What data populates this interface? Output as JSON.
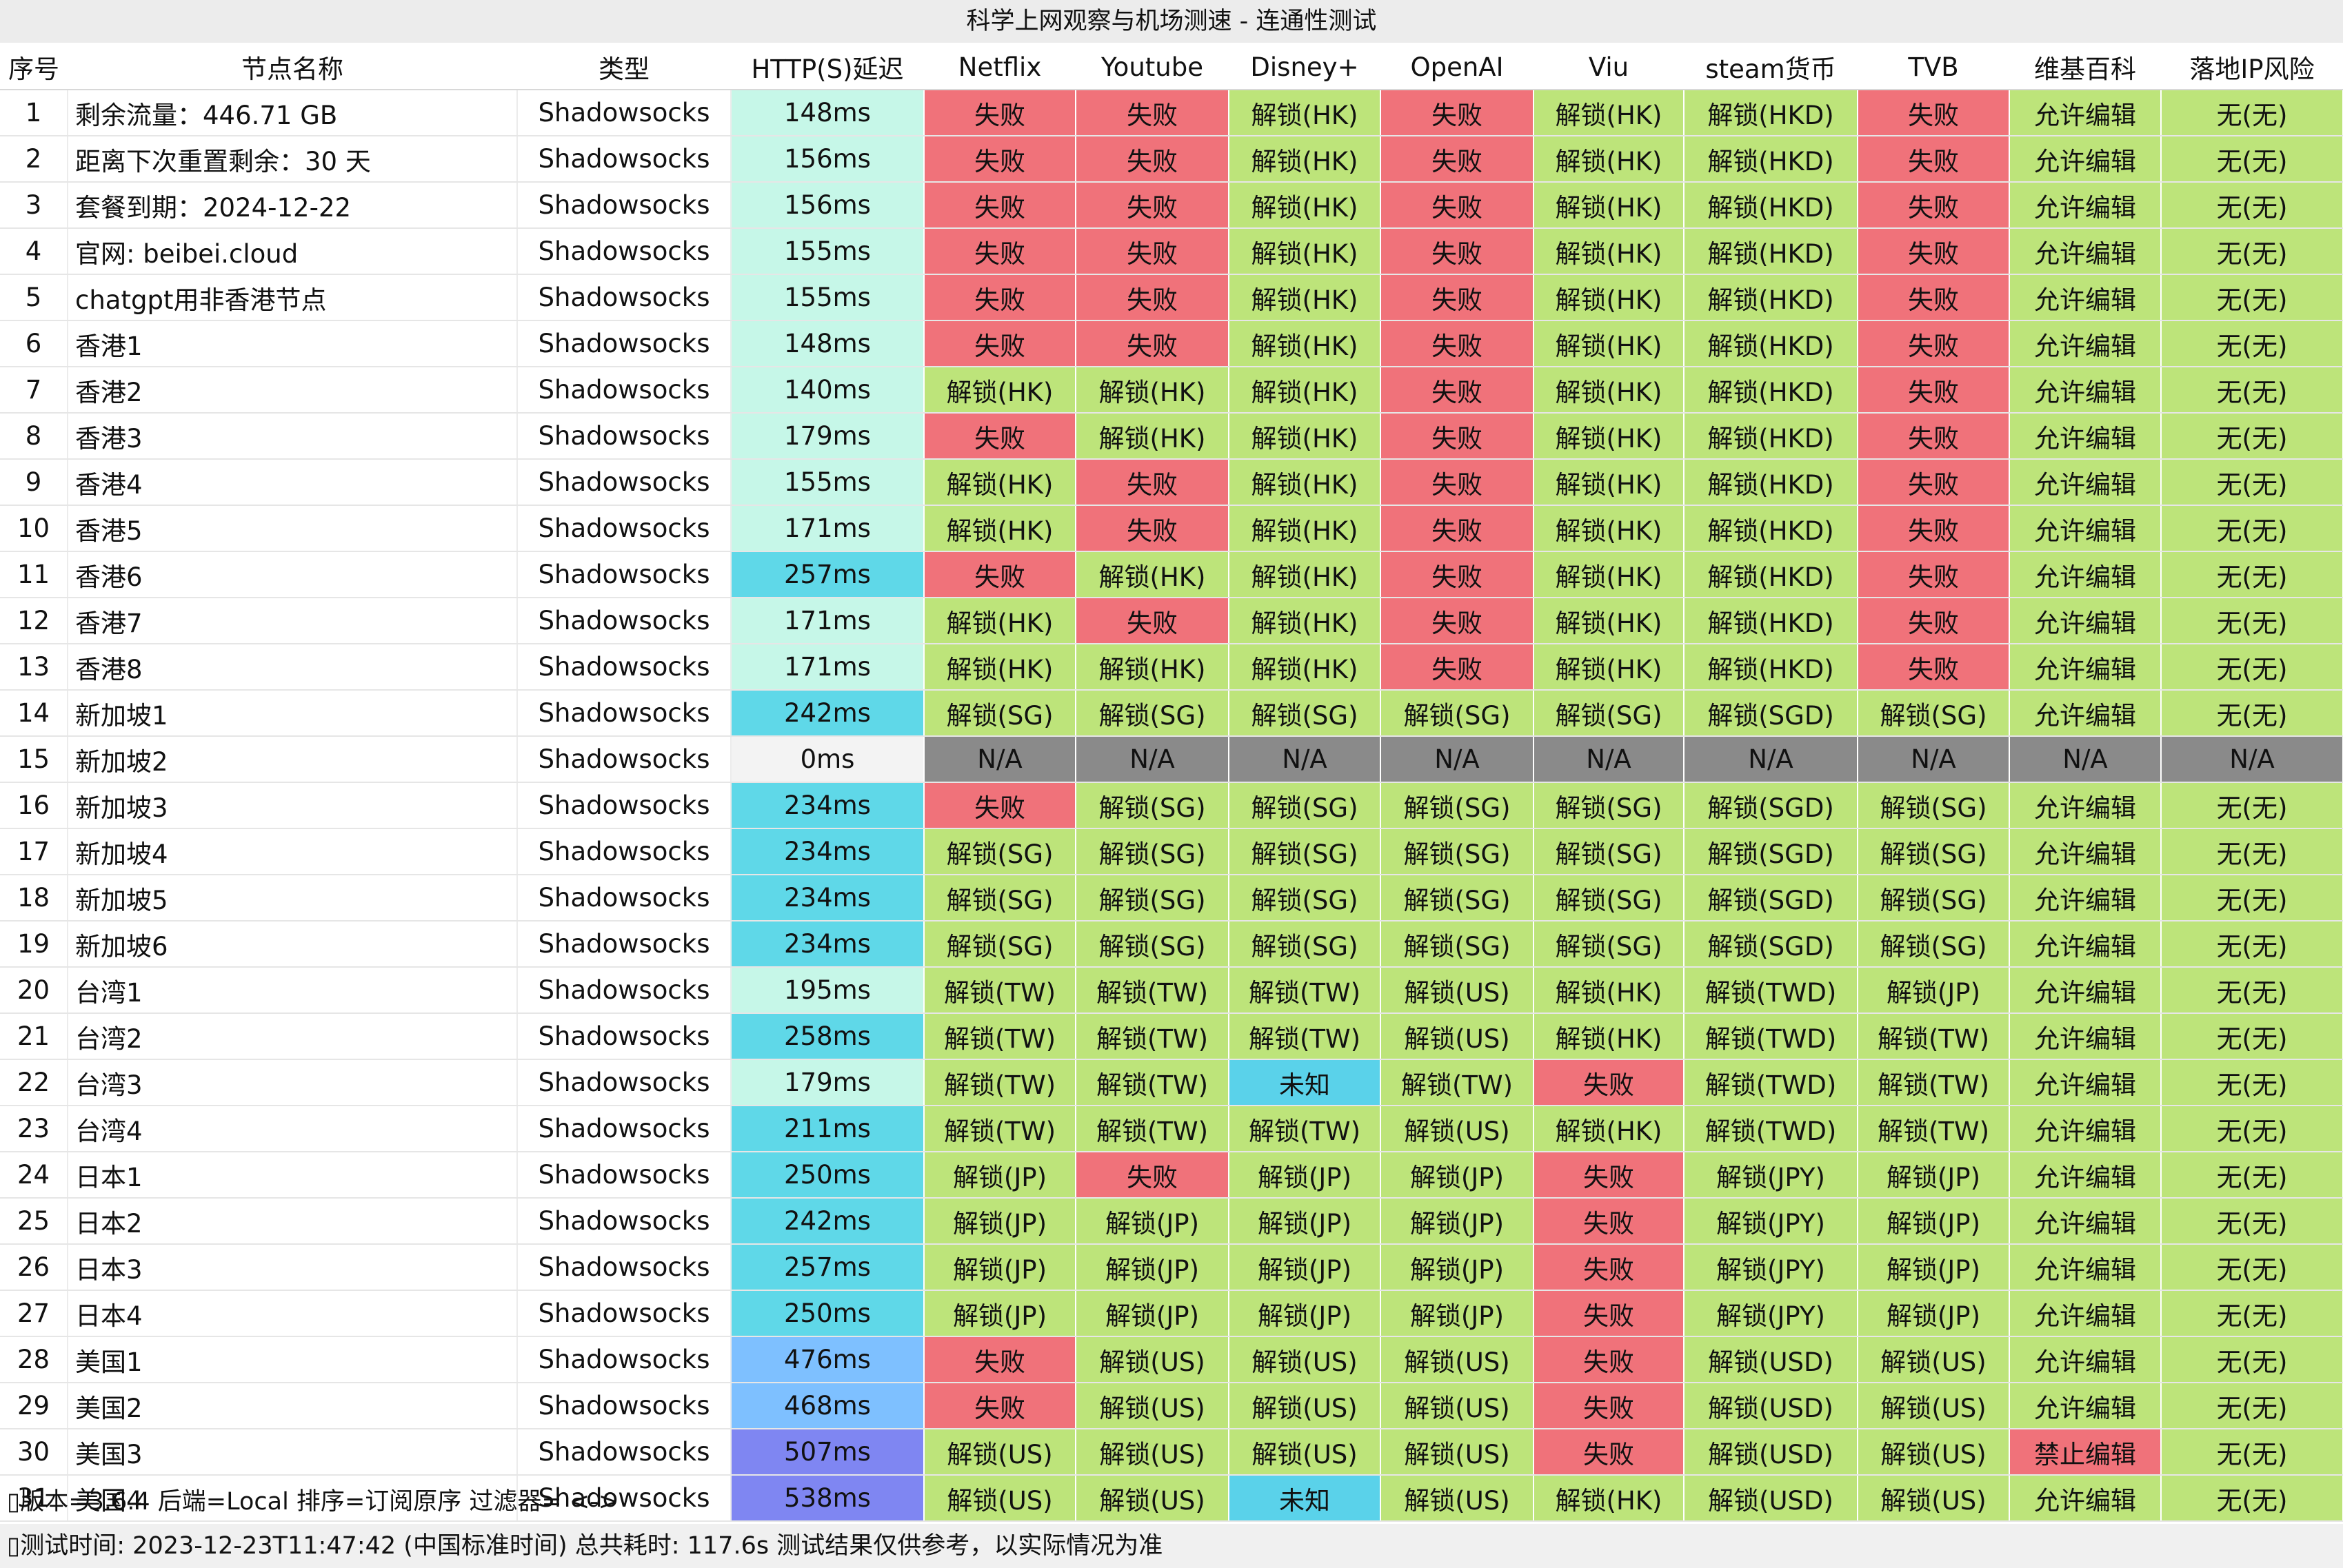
{
  "title": "科学上网观察与机场测速 - 连通性测试",
  "columns": [
    "序号",
    "节点名称",
    "类型",
    "HTTP(S)延迟",
    "Netflix",
    "Youtube",
    "Disney+",
    "OpenAI",
    "Viu",
    "steam货币",
    "TVB",
    "维基百科",
    "落地IP风险"
  ],
  "colors": {
    "fail": "#f0727a",
    "unlock": "#bde47a",
    "na": "#8a8a8a",
    "unknown": "#5ad2ea",
    "latency_low": "#c6f7e8",
    "latency_mid": "#5fd8e8",
    "latency_high": "#7ec0ff",
    "latency_max": "#7f86f2",
    "latency_zero": "#f3f3f3"
  },
  "rows": [
    {
      "idx": "1",
      "name": "剩余流量：446.71 GB",
      "type": "Shadowsocks",
      "latency": "148ms",
      "netflix": "失败",
      "youtube": "失败",
      "disney": "解锁(HK)",
      "openai": "失败",
      "viu": "解锁(HK)",
      "steam": "解锁(HKD)",
      "tvb": "失败",
      "wiki": "允许编辑",
      "risk": "无(无)"
    },
    {
      "idx": "2",
      "name": "距离下次重置剩余：30 天",
      "type": "Shadowsocks",
      "latency": "156ms",
      "netflix": "失败",
      "youtube": "失败",
      "disney": "解锁(HK)",
      "openai": "失败",
      "viu": "解锁(HK)",
      "steam": "解锁(HKD)",
      "tvb": "失败",
      "wiki": "允许编辑",
      "risk": "无(无)"
    },
    {
      "idx": "3",
      "name": "套餐到期：2024-12-22",
      "type": "Shadowsocks",
      "latency": "156ms",
      "netflix": "失败",
      "youtube": "失败",
      "disney": "解锁(HK)",
      "openai": "失败",
      "viu": "解锁(HK)",
      "steam": "解锁(HKD)",
      "tvb": "失败",
      "wiki": "允许编辑",
      "risk": "无(无)"
    },
    {
      "idx": "4",
      "name": "官网: beibei.cloud",
      "type": "Shadowsocks",
      "latency": "155ms",
      "netflix": "失败",
      "youtube": "失败",
      "disney": "解锁(HK)",
      "openai": "失败",
      "viu": "解锁(HK)",
      "steam": "解锁(HKD)",
      "tvb": "失败",
      "wiki": "允许编辑",
      "risk": "无(无)"
    },
    {
      "idx": "5",
      "name": "chatgpt用非香港节点",
      "type": "Shadowsocks",
      "latency": "155ms",
      "netflix": "失败",
      "youtube": "失败",
      "disney": "解锁(HK)",
      "openai": "失败",
      "viu": "解锁(HK)",
      "steam": "解锁(HKD)",
      "tvb": "失败",
      "wiki": "允许编辑",
      "risk": "无(无)"
    },
    {
      "idx": "6",
      "name": "香港1",
      "type": "Shadowsocks",
      "latency": "148ms",
      "netflix": "失败",
      "youtube": "失败",
      "disney": "解锁(HK)",
      "openai": "失败",
      "viu": "解锁(HK)",
      "steam": "解锁(HKD)",
      "tvb": "失败",
      "wiki": "允许编辑",
      "risk": "无(无)"
    },
    {
      "idx": "7",
      "name": "香港2",
      "type": "Shadowsocks",
      "latency": "140ms",
      "netflix": "解锁(HK)",
      "youtube": "解锁(HK)",
      "disney": "解锁(HK)",
      "openai": "失败",
      "viu": "解锁(HK)",
      "steam": "解锁(HKD)",
      "tvb": "失败",
      "wiki": "允许编辑",
      "risk": "无(无)"
    },
    {
      "idx": "8",
      "name": "香港3",
      "type": "Shadowsocks",
      "latency": "179ms",
      "netflix": "失败",
      "youtube": "解锁(HK)",
      "disney": "解锁(HK)",
      "openai": "失败",
      "viu": "解锁(HK)",
      "steam": "解锁(HKD)",
      "tvb": "失败",
      "wiki": "允许编辑",
      "risk": "无(无)"
    },
    {
      "idx": "9",
      "name": "香港4",
      "type": "Shadowsocks",
      "latency": "155ms",
      "netflix": "解锁(HK)",
      "youtube": "失败",
      "disney": "解锁(HK)",
      "openai": "失败",
      "viu": "解锁(HK)",
      "steam": "解锁(HKD)",
      "tvb": "失败",
      "wiki": "允许编辑",
      "risk": "无(无)"
    },
    {
      "idx": "10",
      "name": "香港5",
      "type": "Shadowsocks",
      "latency": "171ms",
      "netflix": "解锁(HK)",
      "youtube": "失败",
      "disney": "解锁(HK)",
      "openai": "失败",
      "viu": "解锁(HK)",
      "steam": "解锁(HKD)",
      "tvb": "失败",
      "wiki": "允许编辑",
      "risk": "无(无)"
    },
    {
      "idx": "11",
      "name": "香港6",
      "type": "Shadowsocks",
      "latency": "257ms",
      "netflix": "失败",
      "youtube": "解锁(HK)",
      "disney": "解锁(HK)",
      "openai": "失败",
      "viu": "解锁(HK)",
      "steam": "解锁(HKD)",
      "tvb": "失败",
      "wiki": "允许编辑",
      "risk": "无(无)"
    },
    {
      "idx": "12",
      "name": "香港7",
      "type": "Shadowsocks",
      "latency": "171ms",
      "netflix": "解锁(HK)",
      "youtube": "失败",
      "disney": "解锁(HK)",
      "openai": "失败",
      "viu": "解锁(HK)",
      "steam": "解锁(HKD)",
      "tvb": "失败",
      "wiki": "允许编辑",
      "risk": "无(无)"
    },
    {
      "idx": "13",
      "name": "香港8",
      "type": "Shadowsocks",
      "latency": "171ms",
      "netflix": "解锁(HK)",
      "youtube": "解锁(HK)",
      "disney": "解锁(HK)",
      "openai": "失败",
      "viu": "解锁(HK)",
      "steam": "解锁(HKD)",
      "tvb": "失败",
      "wiki": "允许编辑",
      "risk": "无(无)"
    },
    {
      "idx": "14",
      "name": "新加坡1",
      "type": "Shadowsocks",
      "latency": "242ms",
      "netflix": "解锁(SG)",
      "youtube": "解锁(SG)",
      "disney": "解锁(SG)",
      "openai": "解锁(SG)",
      "viu": "解锁(SG)",
      "steam": "解锁(SGD)",
      "tvb": "解锁(SG)",
      "wiki": "允许编辑",
      "risk": "无(无)"
    },
    {
      "idx": "15",
      "name": "新加坡2",
      "type": "Shadowsocks",
      "latency": "0ms",
      "netflix": "N/A",
      "youtube": "N/A",
      "disney": "N/A",
      "openai": "N/A",
      "viu": "N/A",
      "steam": "N/A",
      "tvb": "N/A",
      "wiki": "N/A",
      "risk": "N/A"
    },
    {
      "idx": "16",
      "name": "新加坡3",
      "type": "Shadowsocks",
      "latency": "234ms",
      "netflix": "失败",
      "youtube": "解锁(SG)",
      "disney": "解锁(SG)",
      "openai": "解锁(SG)",
      "viu": "解锁(SG)",
      "steam": "解锁(SGD)",
      "tvb": "解锁(SG)",
      "wiki": "允许编辑",
      "risk": "无(无)"
    },
    {
      "idx": "17",
      "name": "新加坡4",
      "type": "Shadowsocks",
      "latency": "234ms",
      "netflix": "解锁(SG)",
      "youtube": "解锁(SG)",
      "disney": "解锁(SG)",
      "openai": "解锁(SG)",
      "viu": "解锁(SG)",
      "steam": "解锁(SGD)",
      "tvb": "解锁(SG)",
      "wiki": "允许编辑",
      "risk": "无(无)"
    },
    {
      "idx": "18",
      "name": "新加坡5",
      "type": "Shadowsocks",
      "latency": "234ms",
      "netflix": "解锁(SG)",
      "youtube": "解锁(SG)",
      "disney": "解锁(SG)",
      "openai": "解锁(SG)",
      "viu": "解锁(SG)",
      "steam": "解锁(SGD)",
      "tvb": "解锁(SG)",
      "wiki": "允许编辑",
      "risk": "无(无)"
    },
    {
      "idx": "19",
      "name": "新加坡6",
      "type": "Shadowsocks",
      "latency": "234ms",
      "netflix": "解锁(SG)",
      "youtube": "解锁(SG)",
      "disney": "解锁(SG)",
      "openai": "解锁(SG)",
      "viu": "解锁(SG)",
      "steam": "解锁(SGD)",
      "tvb": "解锁(SG)",
      "wiki": "允许编辑",
      "risk": "无(无)"
    },
    {
      "idx": "20",
      "name": "台湾1",
      "type": "Shadowsocks",
      "latency": "195ms",
      "netflix": "解锁(TW)",
      "youtube": "解锁(TW)",
      "disney": "解锁(TW)",
      "openai": "解锁(US)",
      "viu": "解锁(HK)",
      "steam": "解锁(TWD)",
      "tvb": "解锁(JP)",
      "wiki": "允许编辑",
      "risk": "无(无)"
    },
    {
      "idx": "21",
      "name": "台湾2",
      "type": "Shadowsocks",
      "latency": "258ms",
      "netflix": "解锁(TW)",
      "youtube": "解锁(TW)",
      "disney": "解锁(TW)",
      "openai": "解锁(US)",
      "viu": "解锁(HK)",
      "steam": "解锁(TWD)",
      "tvb": "解锁(TW)",
      "wiki": "允许编辑",
      "risk": "无(无)"
    },
    {
      "idx": "22",
      "name": "台湾3",
      "type": "Shadowsocks",
      "latency": "179ms",
      "netflix": "解锁(TW)",
      "youtube": "解锁(TW)",
      "disney": "未知",
      "openai": "解锁(TW)",
      "viu": "失败",
      "steam": "解锁(TWD)",
      "tvb": "解锁(TW)",
      "wiki": "允许编辑",
      "risk": "无(无)"
    },
    {
      "idx": "23",
      "name": "台湾4",
      "type": "Shadowsocks",
      "latency": "211ms",
      "netflix": "解锁(TW)",
      "youtube": "解锁(TW)",
      "disney": "解锁(TW)",
      "openai": "解锁(US)",
      "viu": "解锁(HK)",
      "steam": "解锁(TWD)",
      "tvb": "解锁(TW)",
      "wiki": "允许编辑",
      "risk": "无(无)"
    },
    {
      "idx": "24",
      "name": "日本1",
      "type": "Shadowsocks",
      "latency": "250ms",
      "netflix": "解锁(JP)",
      "youtube": "失败",
      "disney": "解锁(JP)",
      "openai": "解锁(JP)",
      "viu": "失败",
      "steam": "解锁(JPY)",
      "tvb": "解锁(JP)",
      "wiki": "允许编辑",
      "risk": "无(无)"
    },
    {
      "idx": "25",
      "name": "日本2",
      "type": "Shadowsocks",
      "latency": "242ms",
      "netflix": "解锁(JP)",
      "youtube": "解锁(JP)",
      "disney": "解锁(JP)",
      "openai": "解锁(JP)",
      "viu": "失败",
      "steam": "解锁(JPY)",
      "tvb": "解锁(JP)",
      "wiki": "允许编辑",
      "risk": "无(无)"
    },
    {
      "idx": "26",
      "name": "日本3",
      "type": "Shadowsocks",
      "latency": "257ms",
      "netflix": "解锁(JP)",
      "youtube": "解锁(JP)",
      "disney": "解锁(JP)",
      "openai": "解锁(JP)",
      "viu": "失败",
      "steam": "解锁(JPY)",
      "tvb": "解锁(JP)",
      "wiki": "允许编辑",
      "risk": "无(无)"
    },
    {
      "idx": "27",
      "name": "日本4",
      "type": "Shadowsocks",
      "latency": "250ms",
      "netflix": "解锁(JP)",
      "youtube": "解锁(JP)",
      "disney": "解锁(JP)",
      "openai": "解锁(JP)",
      "viu": "失败",
      "steam": "解锁(JPY)",
      "tvb": "解锁(JP)",
      "wiki": "允许编辑",
      "risk": "无(无)"
    },
    {
      "idx": "28",
      "name": "美国1",
      "type": "Shadowsocks",
      "latency": "476ms",
      "netflix": "失败",
      "youtube": "解锁(US)",
      "disney": "解锁(US)",
      "openai": "解锁(US)",
      "viu": "失败",
      "steam": "解锁(USD)",
      "tvb": "解锁(US)",
      "wiki": "允许编辑",
      "risk": "无(无)"
    },
    {
      "idx": "29",
      "name": "美国2",
      "type": "Shadowsocks",
      "latency": "468ms",
      "netflix": "失败",
      "youtube": "解锁(US)",
      "disney": "解锁(US)",
      "openai": "解锁(US)",
      "viu": "失败",
      "steam": "解锁(USD)",
      "tvb": "解锁(US)",
      "wiki": "允许编辑",
      "risk": "无(无)"
    },
    {
      "idx": "30",
      "name": "美国3",
      "type": "Shadowsocks",
      "latency": "507ms",
      "netflix": "解锁(US)",
      "youtube": "解锁(US)",
      "disney": "解锁(US)",
      "openai": "解锁(US)",
      "viu": "失败",
      "steam": "解锁(USD)",
      "tvb": "解锁(US)",
      "wiki": "禁止编辑",
      "risk": "无(无)"
    },
    {
      "idx": "31",
      "name": "美国4",
      "type": "Shadowsocks",
      "latency": "538ms",
      "netflix": "解锁(US)",
      "youtube": "解锁(US)",
      "disney": "未知",
      "openai": "解锁(US)",
      "viu": "解锁(HK)",
      "steam": "解锁(USD)",
      "tvb": "解锁(US)",
      "wiki": "允许编辑",
      "risk": "无(无)"
    }
  ],
  "footer": {
    "line1": "版本=3.6.4  后端=Local  排序=订阅原序  过滤器= <->",
    "line2": "测试时间: 2023-12-23T11:47:42 (中国标准时间) 总共耗时: 117.6s 测试结果仅供参考，以实际情况为准"
  }
}
